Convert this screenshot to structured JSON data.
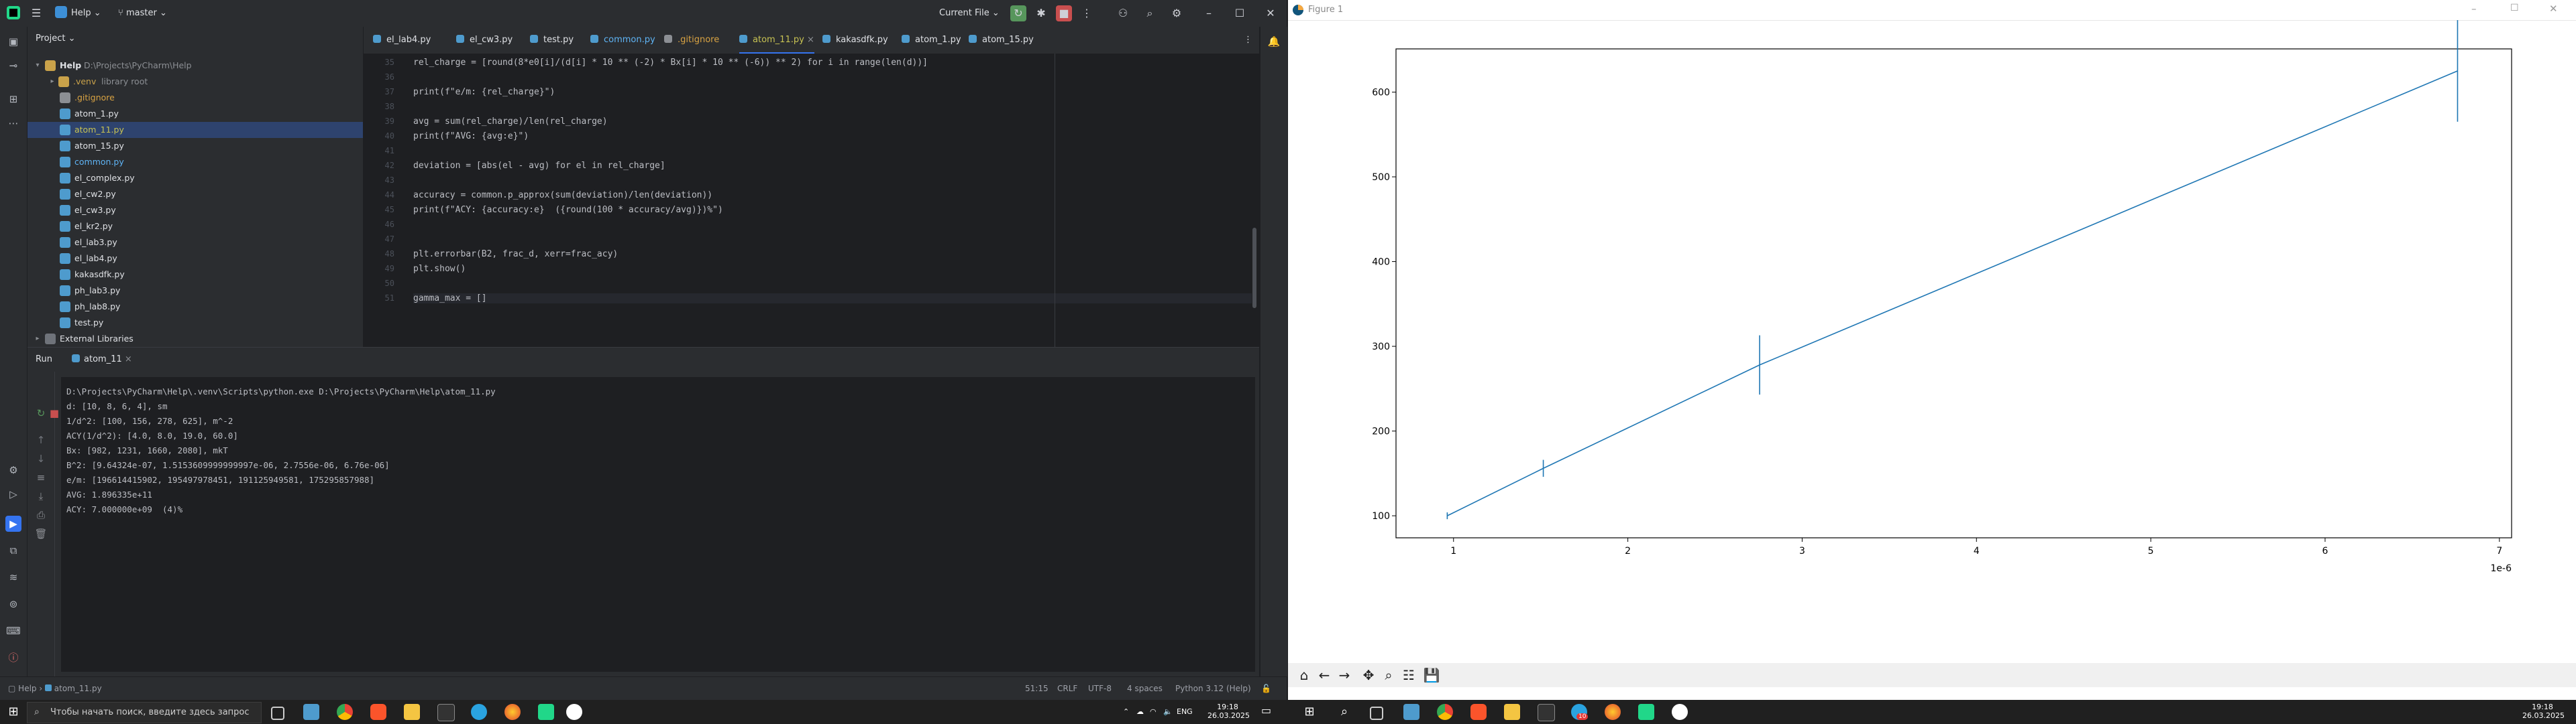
{
  "ide": {
    "title_bar": {
      "project_name": "Help",
      "branch": "master",
      "run_config": "Current File"
    },
    "project_panel": {
      "header": "Project",
      "root": {
        "name": "Help",
        "path": "D:\\Projects\\PyCharm\\Help"
      },
      "venv": {
        "name": ".venv",
        "hint": "library root"
      },
      "files": [
        ".gitignore",
        "atom_1.py",
        "atom_11.py",
        "atom_15.py",
        "common.py",
        "el_complex.py",
        "el_cw2.py",
        "el_cw3.py",
        "el_kr2.py",
        "el_lab3.py",
        "el_lab4.py",
        "kakasdfk.py",
        "ph_lab3.py",
        "ph_lab8.py",
        "test.py"
      ],
      "external": "External Libraries",
      "selected": "atom_11.py"
    },
    "editor": {
      "tabs": [
        "el_lab4.py",
        "el_cw3.py",
        "test.py",
        "common.py",
        ".gitignore",
        "atom_11.py",
        "kakasdfk.py",
        "atom_1.py",
        "atom_15.py"
      ],
      "active_tab": "atom_11.py",
      "error_count": "1",
      "line_numbers": [
        "35",
        "36",
        "37",
        "38",
        "39",
        "40",
        "41",
        "42",
        "43",
        "44",
        "45",
        "46",
        "47",
        "48",
        "49",
        "50",
        "51"
      ],
      "lines": [
        "rel_charge = [round(8*e0[i]/(d[i] * 10 ** (-2) * Bx[i] * 10 ** (-6)) ** 2) for i in range(len(d))]",
        "",
        "print(f\"e/m: {rel_charge}\")",
        "",
        "avg = sum(rel_charge)/len(rel_charge)",
        "print(f\"AVG: {avg:e}\")",
        "",
        "deviation = [abs(el - avg) for el in rel_charge]",
        "",
        "accuracy = common.p_approx(sum(deviation)/len(deviation))",
        "print(f\"ACY: {accuracy:e}  ({round(100 * accuracy/avg)})%\")",
        "",
        "",
        "plt.errorbar(B2, frac_d, xerr=frac_acy)",
        "plt.show()",
        "",
        "gamma_max = []"
      ]
    },
    "run_panel": {
      "label": "Run",
      "tab": "atom_11",
      "output": [
        "D:\\Projects\\PyCharm\\Help\\.venv\\Scripts\\python.exe D:\\Projects\\PyCharm\\Help\\atom_11.py",
        "d: [10, 8, 6, 4], sm",
        "1/d^2: [100, 156, 278, 625], m^-2",
        "ACY(1/d^2): [4.0, 8.0, 19.0, 60.0]",
        "Bx: [982, 1231, 1660, 2080], mkT",
        "B^2: [9.64324e-07, 1.5153609999999997e-06, 2.7556e-06, 6.76e-06]",
        "e/m: [196614415902, 195497978451, 191125949581, 175295857988]",
        "AVG: 1.896335e+11",
        "ACY: 7.000000e+09  (4)%"
      ]
    },
    "status_bar": {
      "breadcrumb_root": "Help",
      "breadcrumb_file": "atom_11.py",
      "position": "51:15",
      "line_ending": "CRLF",
      "encoding": "UTF-8",
      "indent": "4 spaces",
      "interpreter": "Python 3.12 (Help)"
    }
  },
  "figure": {
    "window_title": "Figure 1",
    "chart_data": {
      "type": "line",
      "title": "",
      "xlabel": "",
      "ylabel": "",
      "x_offset_label": "1e-6",
      "x": [
        0.964,
        1.515,
        2.756,
        6.76
      ],
      "y": [
        100,
        156,
        278,
        625
      ],
      "xerr": [
        0.02,
        0.03,
        0.03,
        0.06
      ],
      "yerr_visual": [
        4,
        10,
        35,
        60
      ],
      "xlim": [
        0.67,
        7.07
      ],
      "ylim": [
        74,
        651
      ],
      "xticks": [
        "1",
        "2",
        "3",
        "4",
        "5",
        "6",
        "7"
      ],
      "yticks": [
        "100",
        "200",
        "300",
        "400",
        "500",
        "600",
        "700"
      ],
      "line_color": "#1f77b4",
      "grid": false
    }
  },
  "taskbar_left": {
    "search_placeholder": "Чтобы начать поиск, введите здесь запрос",
    "time": "19:18",
    "date": "26.03.2025",
    "lang": "ENG"
  },
  "taskbar_right": {
    "time": "19:18",
    "date": "26.03.2025",
    "telegram_badge": "10"
  }
}
